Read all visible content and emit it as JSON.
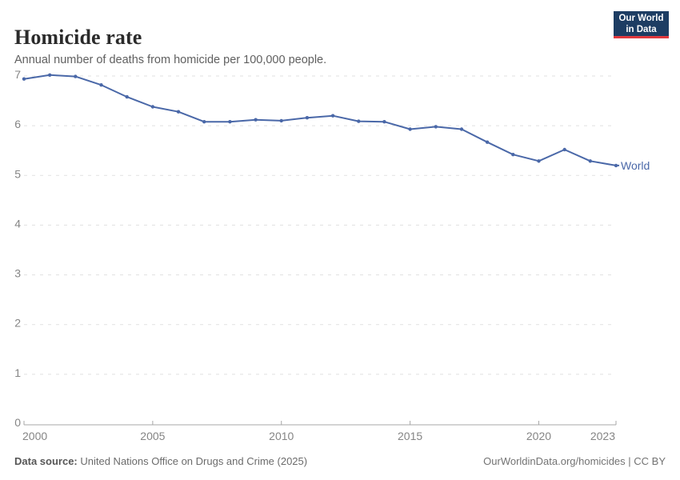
{
  "header": {
    "title": "Homicide rate",
    "subtitle": "Annual number of deaths from homicide per 100,000 people."
  },
  "logo": {
    "line1": "Our World",
    "line2": "in Data"
  },
  "chart_data": {
    "type": "line",
    "title": "Homicide rate",
    "subtitle": "Annual number of deaths from homicide per 100,000 people.",
    "xlabel": "",
    "ylabel": "",
    "x": [
      2000,
      2001,
      2002,
      2003,
      2004,
      2005,
      2006,
      2007,
      2008,
      2009,
      2010,
      2011,
      2012,
      2013,
      2014,
      2015,
      2016,
      2017,
      2018,
      2019,
      2020,
      2021,
      2022,
      2023
    ],
    "series": [
      {
        "name": "World",
        "color": "#4a68a8",
        "values": [
          6.94,
          7.02,
          6.99,
          6.82,
          6.58,
          6.38,
          6.28,
          6.08,
          6.08,
          6.12,
          6.1,
          6.16,
          6.2,
          6.09,
          6.08,
          5.93,
          5.98,
          5.93,
          5.67,
          5.42,
          5.29,
          5.52,
          5.29,
          5.2
        ]
      }
    ],
    "xlim": [
      2000,
      2023
    ],
    "ylim": [
      0,
      7
    ],
    "x_ticks": [
      2000,
      2005,
      2010,
      2015,
      2020,
      2023
    ],
    "y_ticks": [
      0,
      1,
      2,
      3,
      4,
      5,
      6,
      7
    ],
    "grid": "horizontal-dashed",
    "legend": "end-of-line-label"
  },
  "footer": {
    "source_label": "Data source:",
    "source_text": " United Nations Office on Drugs and Crime (2025)",
    "credit_text": "OurWorldinData.org/homicides | CC BY"
  },
  "colors": {
    "line": "#4a68a8",
    "logo_bg": "#1d3d63",
    "logo_accent": "#e0393e",
    "grid": "#e1e1e1",
    "axis": "#a7a7a7",
    "tick_label": "#858585"
  }
}
